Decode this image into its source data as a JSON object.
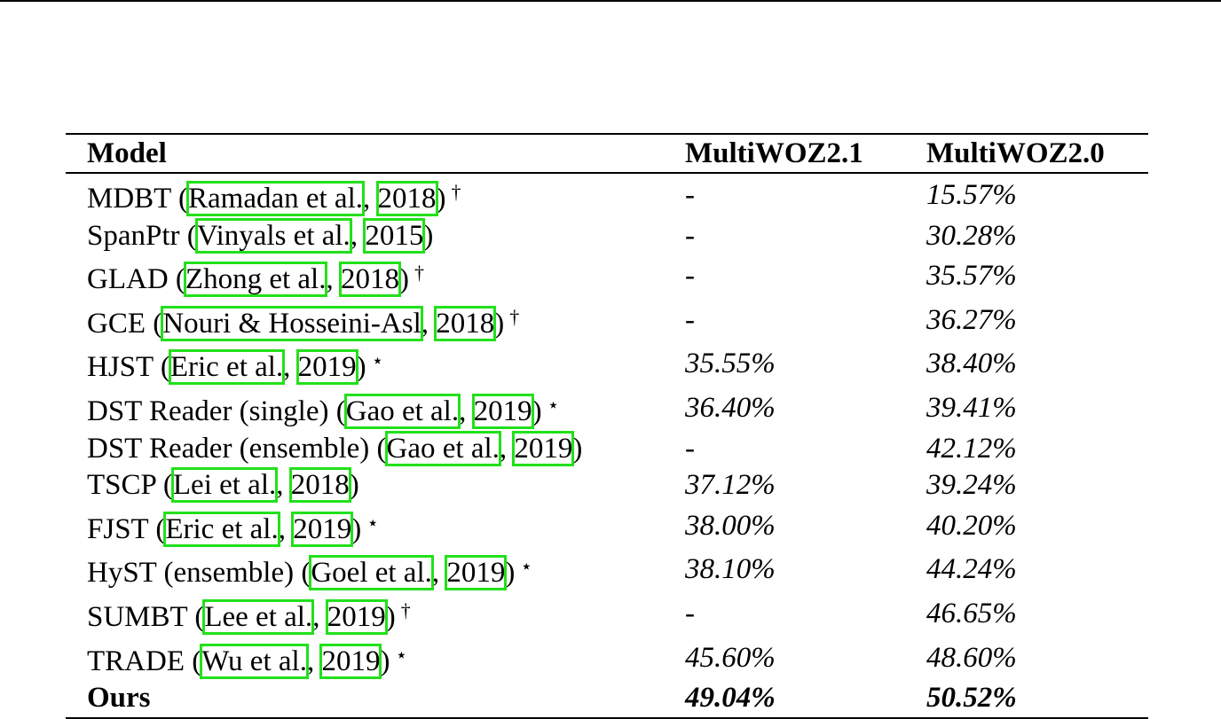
{
  "headers": [
    "Model",
    "MultiWOZ2.1",
    "MultiWOZ2.0"
  ],
  "rows": [
    {
      "name": "MDBT (",
      "author": "Ramadan et al.",
      "year": "2018",
      "close": ")",
      "mark": "†",
      "v21": "-",
      "v20": "15.57%"
    },
    {
      "name": "SpanPtr (",
      "author": "Vinyals et al.",
      "year": "2015",
      "close": ")",
      "mark": "",
      "v21": "-",
      "v20": "30.28%"
    },
    {
      "name": "GLAD (",
      "author": "Zhong et al.",
      "year": "2018",
      "close": ")",
      "mark": "†",
      "v21": "-",
      "v20": "35.57%"
    },
    {
      "name": "GCE (",
      "author": "Nouri & Hosseini-Asl",
      "year": "2018",
      "close": ")",
      "mark": "†",
      "v21": "-",
      "v20": "36.27%"
    },
    {
      "name": "HJST (",
      "author": "Eric et al.",
      "year": "2019",
      "close": ")",
      "mark": "⋆",
      "v21": "35.55%",
      "v20": "38.40%"
    },
    {
      "name": "DST Reader (single) (",
      "author": "Gao et al.",
      "year": "2019",
      "close": ")",
      "mark": "⋆",
      "v21": "36.40%",
      "v20": "39.41%"
    },
    {
      "name": "DST Reader (ensemble) (",
      "author": "Gao et al.",
      "year": "2019",
      "close": ")",
      "mark": "",
      "v21": "-",
      "v20": "42.12%"
    },
    {
      "name": "TSCP (",
      "author": "Lei et al.",
      "year": "2018",
      "close": ")",
      "mark": "",
      "v21": "37.12%",
      "v20": "39.24%"
    },
    {
      "name": "FJST (",
      "author": "Eric et al.",
      "year": "2019",
      "close": ")",
      "mark": "⋆",
      "v21": "38.00%",
      "v20": "40.20%"
    },
    {
      "name": "HyST (ensemble) (",
      "author": "Goel et al.",
      "year": "2019",
      "close": ")",
      "mark": "⋆",
      "v21": "38.10%",
      "v20": "44.24%"
    },
    {
      "name": "SUMBT (",
      "author": "Lee et al.",
      "year": "2019",
      "close": ")",
      "mark": "†",
      "v21": "-",
      "v20": "46.65%"
    },
    {
      "name": "TRADE (",
      "author": "Wu et al.",
      "year": "2019",
      "close": ")",
      "mark": "⋆",
      "v21": "45.60%",
      "v20": "48.60%"
    }
  ],
  "final_row": {
    "name": "Ours",
    "v21": "49.04%",
    "v20": "50.52%"
  },
  "colors": {
    "citation_box": "#22e01a",
    "rule": "#000000"
  }
}
